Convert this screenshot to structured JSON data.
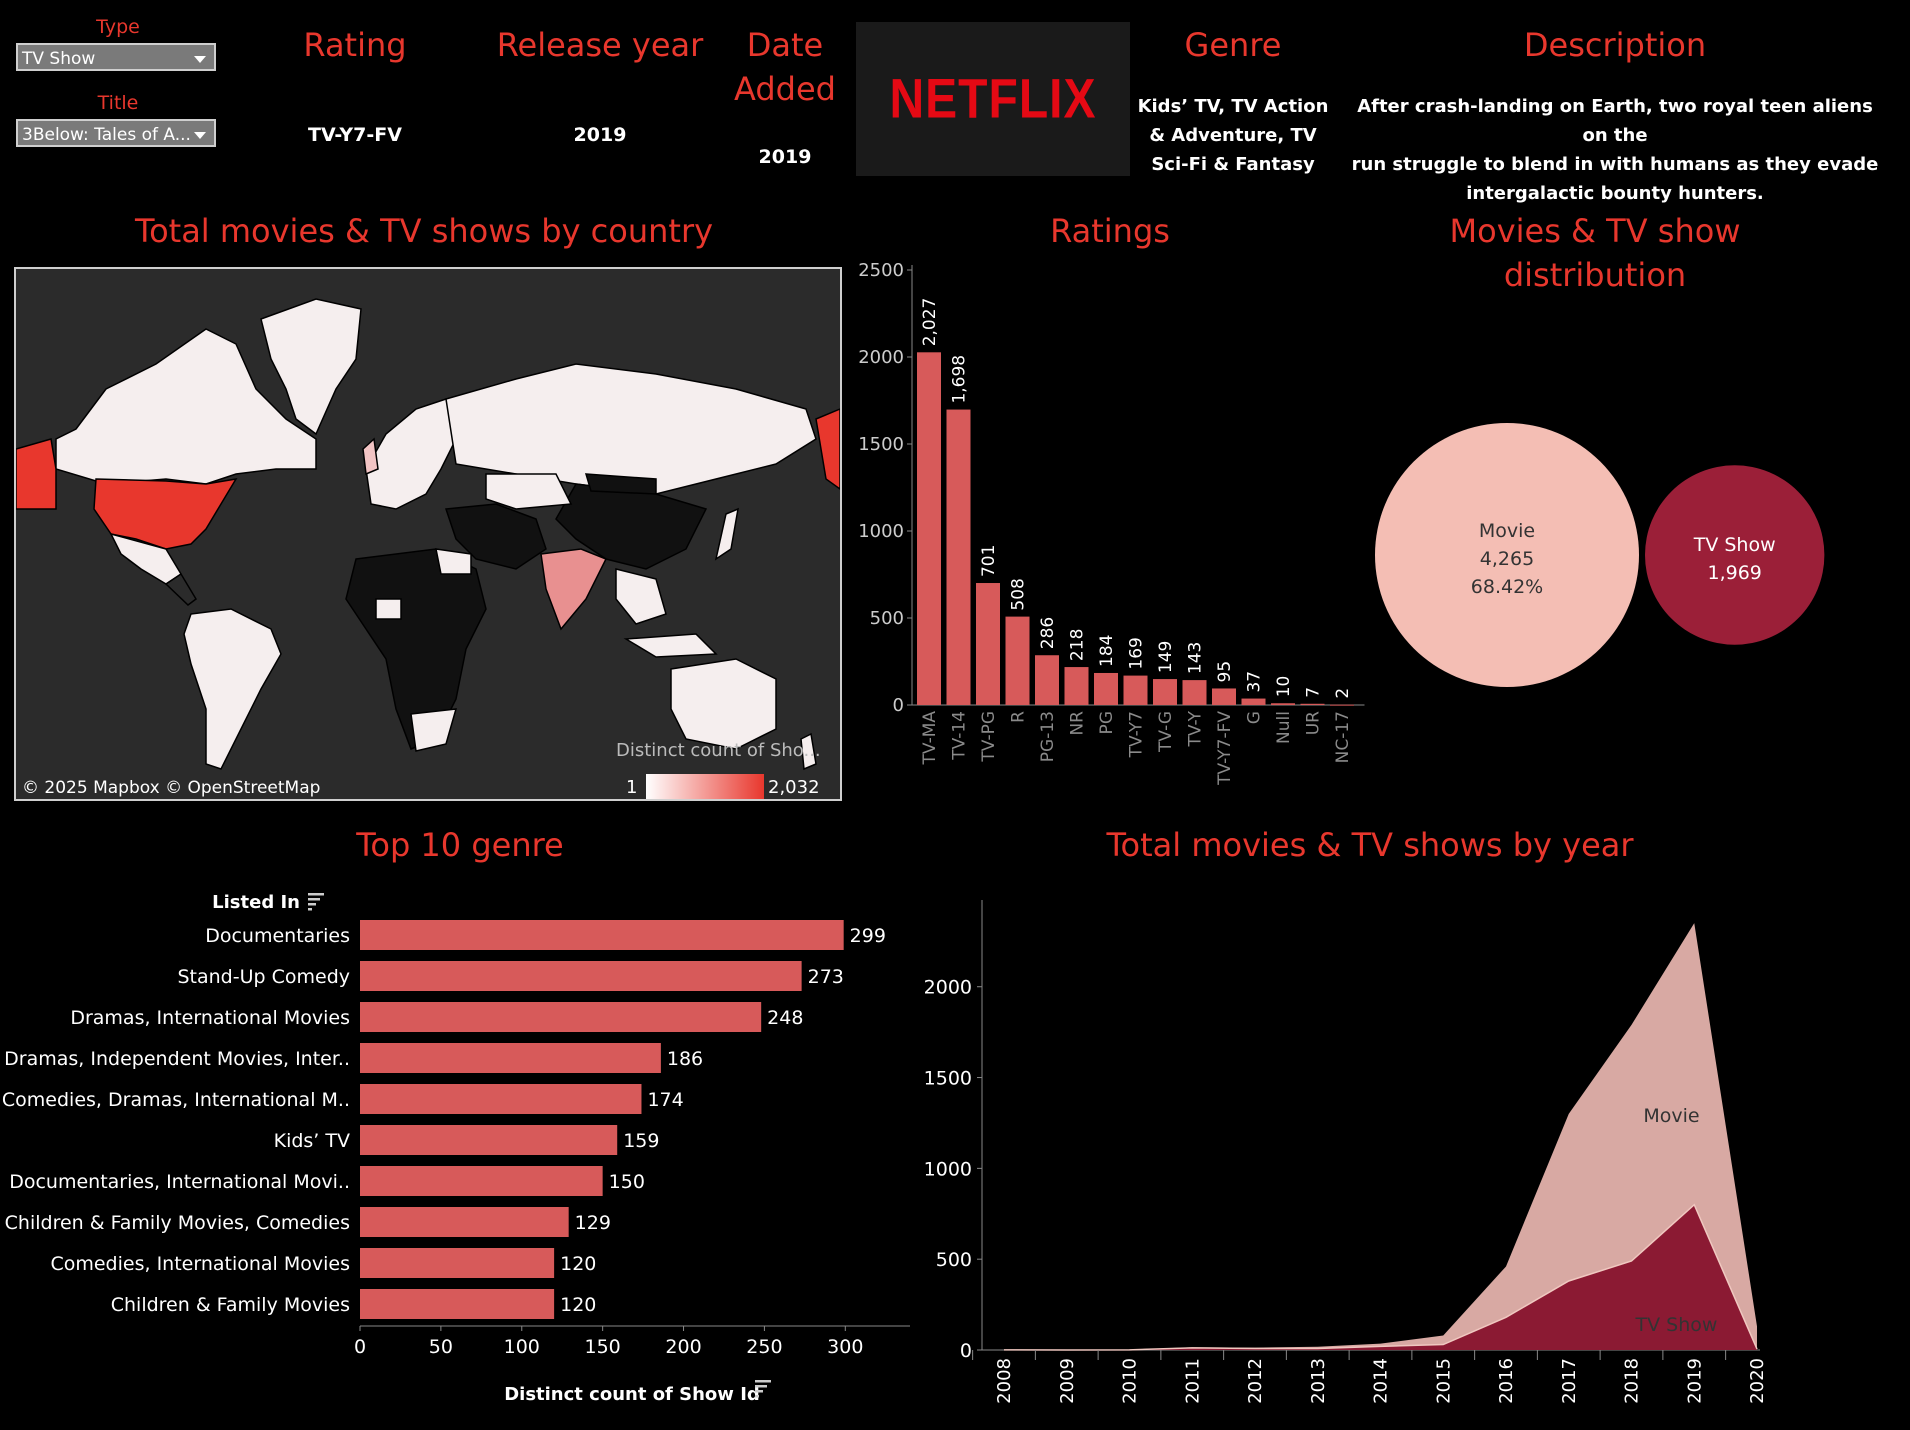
{
  "filters": {
    "type_label": "Type",
    "type_value": "TV Show",
    "title_label": "Title",
    "title_value": "3Below: Tales of A..."
  },
  "details": {
    "rating_header": "Rating",
    "rating_value": "TV-Y7-FV",
    "release_header": "Release year",
    "release_value": "2019",
    "date_header_1": "Date",
    "date_header_2": "Added",
    "date_value": "2019",
    "logo_text": "NETFLIX",
    "genre_header": "Genre",
    "genre_lines": [
      "Kids’ TV, TV Action",
      "& Adventure, TV",
      "Sci-Fi & Fantasy"
    ],
    "description_header": "Description",
    "description_lines": [
      "After crash-landing on Earth, two royal teen aliens on the",
      "run struggle to blend in with humans as they evade",
      "intergalactic bounty hunters."
    ]
  },
  "map": {
    "title": "Total movies & TV shows by country",
    "attribution": "© 2025 Mapbox  © OpenStreetMap",
    "legend_title": "Distinct count of Sho...",
    "legend_min": "1",
    "legend_max": "2,032",
    "colors": {
      "high": "#e8372d",
      "low": "#f5eeee",
      "none": "#111111",
      "ocean": "#2b2b2b"
    }
  },
  "ratings_title": "Ratings",
  "distribution_title_1": "Movies & TV show",
  "distribution_title_2": "distribution",
  "genre_title": "Top 10 genre",
  "year_title": "Total movies & TV shows by year",
  "chart_data": [
    {
      "type": "bar",
      "title": "Ratings",
      "categories": [
        "TV-MA",
        "TV-14",
        "TV-PG",
        "R",
        "PG-13",
        "NR",
        "PG",
        "TV-Y7",
        "TV-G",
        "TV-Y",
        "TV-Y7-FV",
        "G",
        "Null",
        "UR",
        "NC-17"
      ],
      "values": [
        2027,
        1698,
        701,
        508,
        286,
        218,
        184,
        169,
        149,
        143,
        95,
        37,
        10,
        7,
        2
      ],
      "value_labels": [
        "2,027",
        "1,698",
        "701",
        "508",
        "286",
        "218",
        "184",
        "169",
        "149",
        "143",
        "95",
        "37",
        "10",
        "7",
        "2"
      ],
      "yticks": [
        "0",
        "500",
        "1000",
        "1500",
        "2000",
        "2500"
      ],
      "ylim": [
        0,
        2500
      ],
      "color": "#d75a5a"
    },
    {
      "type": "bubble",
      "title": "Movies & TV show distribution",
      "items": [
        {
          "name": "Movie",
          "value": 4265,
          "value_label": "4,265",
          "percent": "68.42%",
          "color": "#f4beb4"
        },
        {
          "name": "TV Show",
          "value": 1969,
          "value_label": "1,969",
          "color": "#9b1f38"
        }
      ]
    },
    {
      "type": "bar",
      "orientation": "horizontal",
      "title": "Top 10 genre",
      "ylabel": "Listed In",
      "xlabel": "Distinct count of Show Id",
      "categories": [
        "Documentaries",
        "Stand-Up Comedy",
        "Dramas, International Movies",
        "Dramas, Independent Movies, Inter..",
        "Comedies, Dramas, International M..",
        "Kids’ TV",
        "Documentaries, International Movi..",
        "Children & Family Movies, Comedies",
        "Comedies, International Movies",
        "Children & Family Movies"
      ],
      "values": [
        299,
        273,
        248,
        186,
        174,
        159,
        150,
        129,
        120,
        120
      ],
      "xticks": [
        "0",
        "50",
        "100",
        "150",
        "200",
        "250",
        "300"
      ],
      "xlim": [
        0,
        340
      ],
      "color": "#d75a5a"
    },
    {
      "type": "area",
      "title": "Total movies & TV shows by year",
      "x": [
        "2008",
        "2009",
        "2010",
        "2011",
        "2012",
        "2013",
        "2014",
        "2015",
        "2016",
        "2017",
        "2018",
        "2019",
        "2020"
      ],
      "series": [
        {
          "name": "TV Show",
          "values": [
            1,
            0,
            1,
            12,
            8,
            8,
            20,
            30,
            180,
            380,
            490,
            800,
            5
          ],
          "color": "#8b1a33"
        },
        {
          "name": "Movie",
          "values": [
            1,
            2,
            1,
            3,
            5,
            10,
            15,
            50,
            280,
            920,
            1300,
            1550,
            125
          ],
          "color": "#d8a9a3"
        }
      ],
      "yticks": [
        "0",
        "500",
        "1000",
        "1500",
        "2000"
      ],
      "ylim": [
        0,
        2450
      ]
    }
  ]
}
